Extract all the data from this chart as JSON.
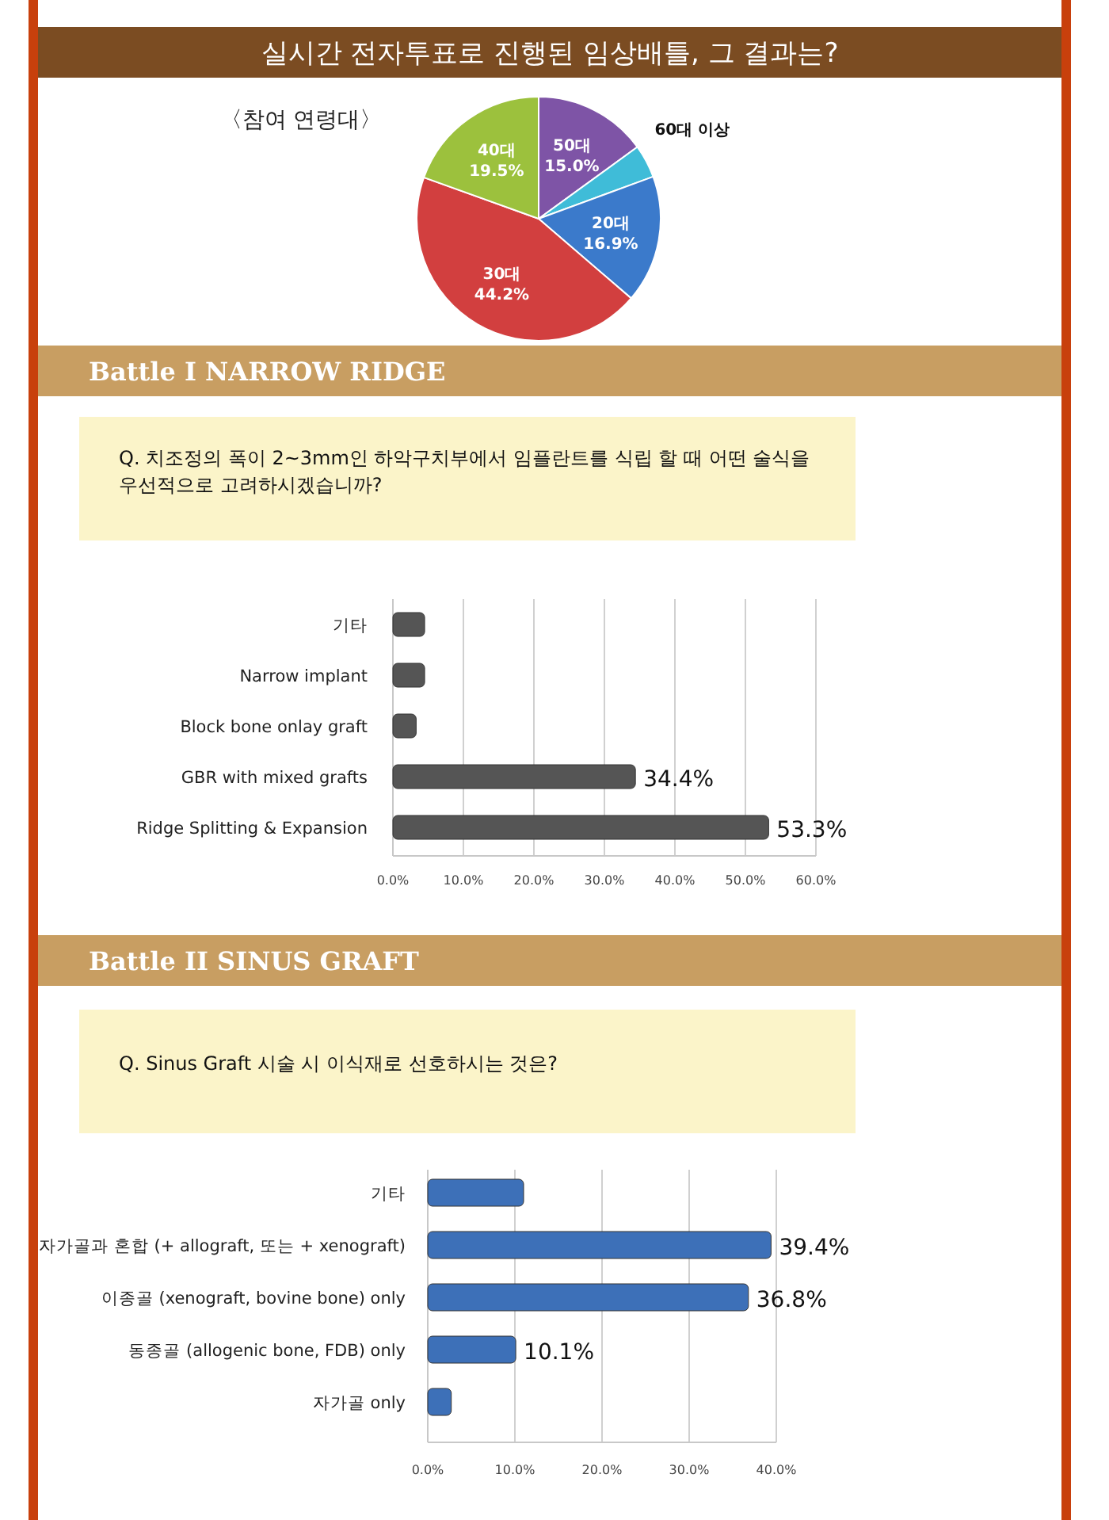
{
  "chart_data": [
    {
      "type": "pie",
      "title": "실시간 전자투표로 진행된 임상배틀, 그 결과는?",
      "subtitle": "〈참여 연령대〉",
      "categories": [
        "50대",
        "60대 이상",
        "20대",
        "30대",
        "40대"
      ],
      "values": [
        15.0,
        4.4,
        16.9,
        44.2,
        19.5
      ],
      "value_labels": [
        "15.0%",
        null,
        "16.9%",
        "44.2%",
        "19.5%"
      ],
      "colors": [
        "#7e54a6",
        "#3fbcd8",
        "#3b7acb",
        "#d23f3f",
        "#9cc13d"
      ]
    },
    {
      "type": "bar",
      "orientation": "horizontal",
      "title": "Battle I  NARROW RIDGE",
      "subtitle": "Q. 치조정의 폭이 2~3mm인 하악구치부에서 임플란트를 식립 할 때 어떤 술식을 우선적으로 고려하시겠습니까?",
      "categories": [
        "기타",
        "Narrow implant",
        "Block bone onlay graft",
        "GBR with mixed grafts",
        "Ridge Splitting & Expansion"
      ],
      "values": [
        4.5,
        4.5,
        3.3,
        34.4,
        53.3
      ],
      "value_labels": [
        null,
        null,
        null,
        "34.4%",
        "53.3%"
      ],
      "color": "#555555",
      "xlim": [
        0,
        60
      ],
      "xticks": [
        {
          "value": 0,
          "label": "0.0%"
        },
        {
          "value": 10,
          "label": "10.0%"
        },
        {
          "value": 20,
          "label": "20.0%"
        },
        {
          "value": 30,
          "label": "30.0%"
        },
        {
          "value": 40,
          "label": "40.0%"
        },
        {
          "value": 50,
          "label": "50.0%"
        },
        {
          "value": 60,
          "label": "60.0%"
        }
      ],
      "grid": "x"
    },
    {
      "type": "bar",
      "orientation": "horizontal",
      "title": "Battle II  SINUS GRAFT",
      "subtitle": "Q. Sinus Graft 시술 시  이식재로 선호하시는 것은?",
      "categories": [
        "기타",
        "자가골과 혼합 (+ allograft, 또는 + xenograft)",
        "이종골 (xenograft, bovine bone) only",
        "동종골 (allogenic bone, FDB) only",
        "자가골 only"
      ],
      "values": [
        11.0,
        39.4,
        36.8,
        10.1,
        2.7
      ],
      "value_labels": [
        null,
        "39.4%",
        "36.8%",
        "10.1%",
        null
      ],
      "color": "#3d70b8",
      "xlim": [
        0,
        40
      ],
      "xticks": [
        {
          "value": 0,
          "label": "0.0%"
        },
        {
          "value": 10,
          "label": "10.0%"
        },
        {
          "value": 20,
          "label": "20.0%"
        },
        {
          "value": 30,
          "label": "30.0%"
        },
        {
          "value": 40,
          "label": "40.0%"
        }
      ],
      "grid": "x"
    }
  ]
}
